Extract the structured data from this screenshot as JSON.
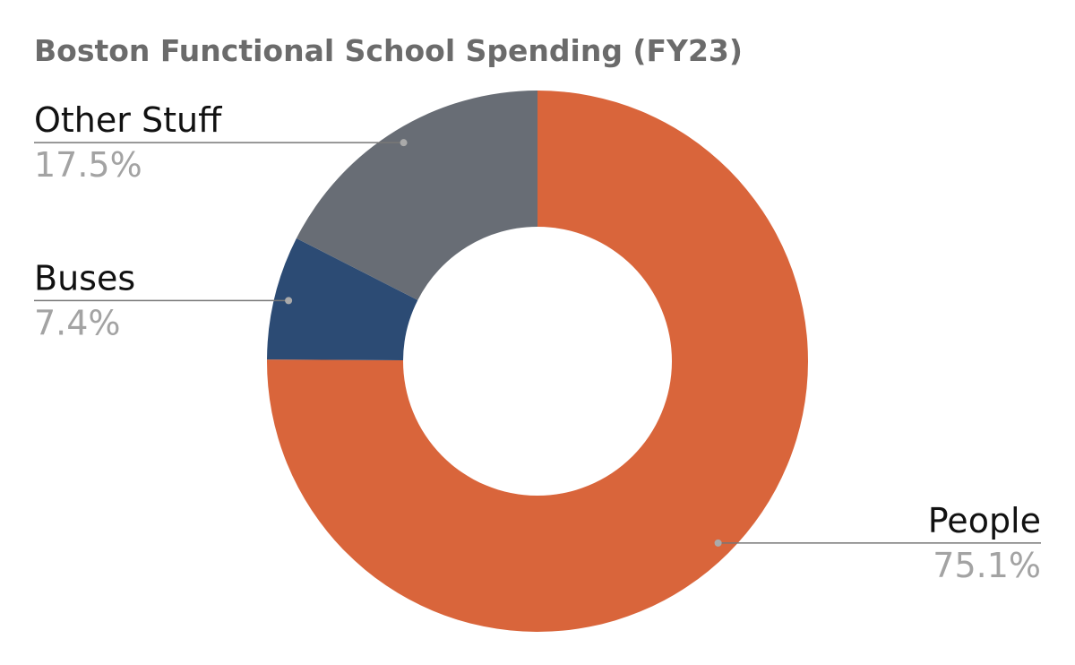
{
  "chart_data": {
    "type": "donut",
    "title": "Boston Functional School Spending (FY23)",
    "categories": [
      "People",
      "Buses",
      "Other Stuff"
    ],
    "values": [
      75.1,
      7.4,
      17.5
    ],
    "value_labels": [
      "75.1%",
      "7.4%",
      "17.5%"
    ],
    "colors": [
      "#d9653b",
      "#2c4b74",
      "#686d75"
    ]
  }
}
